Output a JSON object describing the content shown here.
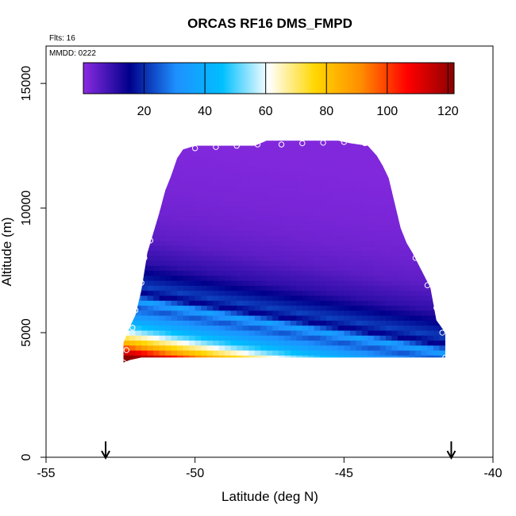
{
  "chart_data": {
    "type": "heatmap",
    "title": "ORCAS RF16 DMS_FMPD",
    "flights_label": "Flts: 16",
    "date_label": "MMDD: 0222",
    "xlabel": "Latitude (deg N)",
    "ylabel": "Altitude (m)",
    "xlim": [
      -55,
      -40
    ],
    "ylim": [
      0,
      16500
    ],
    "xticks": [
      -55,
      -50,
      -45,
      -40
    ],
    "yticks": [
      0,
      5000,
      10000,
      15000
    ],
    "colorbar": {
      "range": [
        0,
        122
      ],
      "ticks": [
        20,
        40,
        60,
        80,
        100,
        120
      ],
      "colors": [
        "#8a2be2",
        "#00008b",
        "#1e90ff",
        "#00bfff",
        "#ffffff",
        "#ffd700",
        "#ff8c00",
        "#ff0000",
        "#8b0000"
      ]
    },
    "arrows_latitude": [
      -53.0,
      -41.4
    ],
    "envelope": [
      [
        -52.4,
        3800,
        4600
      ],
      [
        -52.2,
        3900,
        5200
      ],
      [
        -52.0,
        3950,
        5700
      ],
      [
        -51.8,
        4000,
        6700
      ],
      [
        -51.6,
        4000,
        8200
      ],
      [
        -51.4,
        4000,
        9000
      ],
      [
        -51.2,
        4000,
        9800
      ],
      [
        -51.0,
        4000,
        10700
      ],
      [
        -50.8,
        4000,
        11300
      ],
      [
        -50.6,
        4000,
        12000
      ],
      [
        -50.4,
        4000,
        12350
      ],
      [
        -50.0,
        4000,
        12500
      ],
      [
        -48.0,
        4000,
        12500
      ],
      [
        -47.6,
        4000,
        12700
      ],
      [
        -45.2,
        4000,
        12700
      ],
      [
        -44.8,
        4000,
        12600
      ],
      [
        -44.2,
        4000,
        12500
      ],
      [
        -43.9,
        4000,
        12100
      ],
      [
        -43.7,
        4000,
        11700
      ],
      [
        -43.5,
        4000,
        11200
      ],
      [
        -43.3,
        4000,
        10200
      ],
      [
        -43.1,
        4000,
        9200
      ],
      [
        -42.9,
        4000,
        8600
      ],
      [
        -42.7,
        4000,
        8200
      ],
      [
        -42.4,
        4000,
        7500
      ],
      [
        -42.1,
        4000,
        6800
      ],
      [
        -41.9,
        4000,
        5500
      ],
      [
        -41.6,
        4000,
        5000
      ]
    ],
    "field_profile": [
      [
        4000,
        125
      ],
      [
        4300,
        110
      ],
      [
        4600,
        85
      ],
      [
        4900,
        68
      ],
      [
        5200,
        52
      ],
      [
        5500,
        40
      ],
      [
        5800,
        32
      ],
      [
        6100,
        24
      ],
      [
        6400,
        36
      ],
      [
        6700,
        14
      ],
      [
        7000,
        22
      ],
      [
        7500,
        16
      ],
      [
        8000,
        10
      ],
      [
        9000,
        5
      ],
      [
        10000,
        3
      ],
      [
        11000,
        2
      ],
      [
        13000,
        1
      ]
    ],
    "flight_track": [
      [
        -52.4,
        3800
      ],
      [
        -52.3,
        4300
      ],
      [
        -52.1,
        5200
      ],
      [
        -52.0,
        5900
      ],
      [
        -51.8,
        7000
      ],
      [
        -51.7,
        8000
      ],
      [
        -51.5,
        8700
      ],
      [
        -51.4,
        9500
      ],
      [
        -51.1,
        10700
      ],
      [
        -50.7,
        12200
      ],
      [
        -50.0,
        12400
      ],
      [
        -49.3,
        12450
      ],
      [
        -48.6,
        12500
      ],
      [
        -47.9,
        12550
      ],
      [
        -47.1,
        12550
      ],
      [
        -46.4,
        12600
      ],
      [
        -45.7,
        12620
      ],
      [
        -45.0,
        12650
      ],
      [
        -44.3,
        12600
      ],
      [
        -43.8,
        12300
      ],
      [
        -43.4,
        11600
      ],
      [
        -43.2,
        10800
      ],
      [
        -43.0,
        9800
      ],
      [
        -42.8,
        9000
      ],
      [
        -42.6,
        8000
      ],
      [
        -42.2,
        6900
      ],
      [
        -41.9,
        6000
      ],
      [
        -41.7,
        5000
      ],
      [
        -41.6,
        4000
      ]
    ]
  }
}
